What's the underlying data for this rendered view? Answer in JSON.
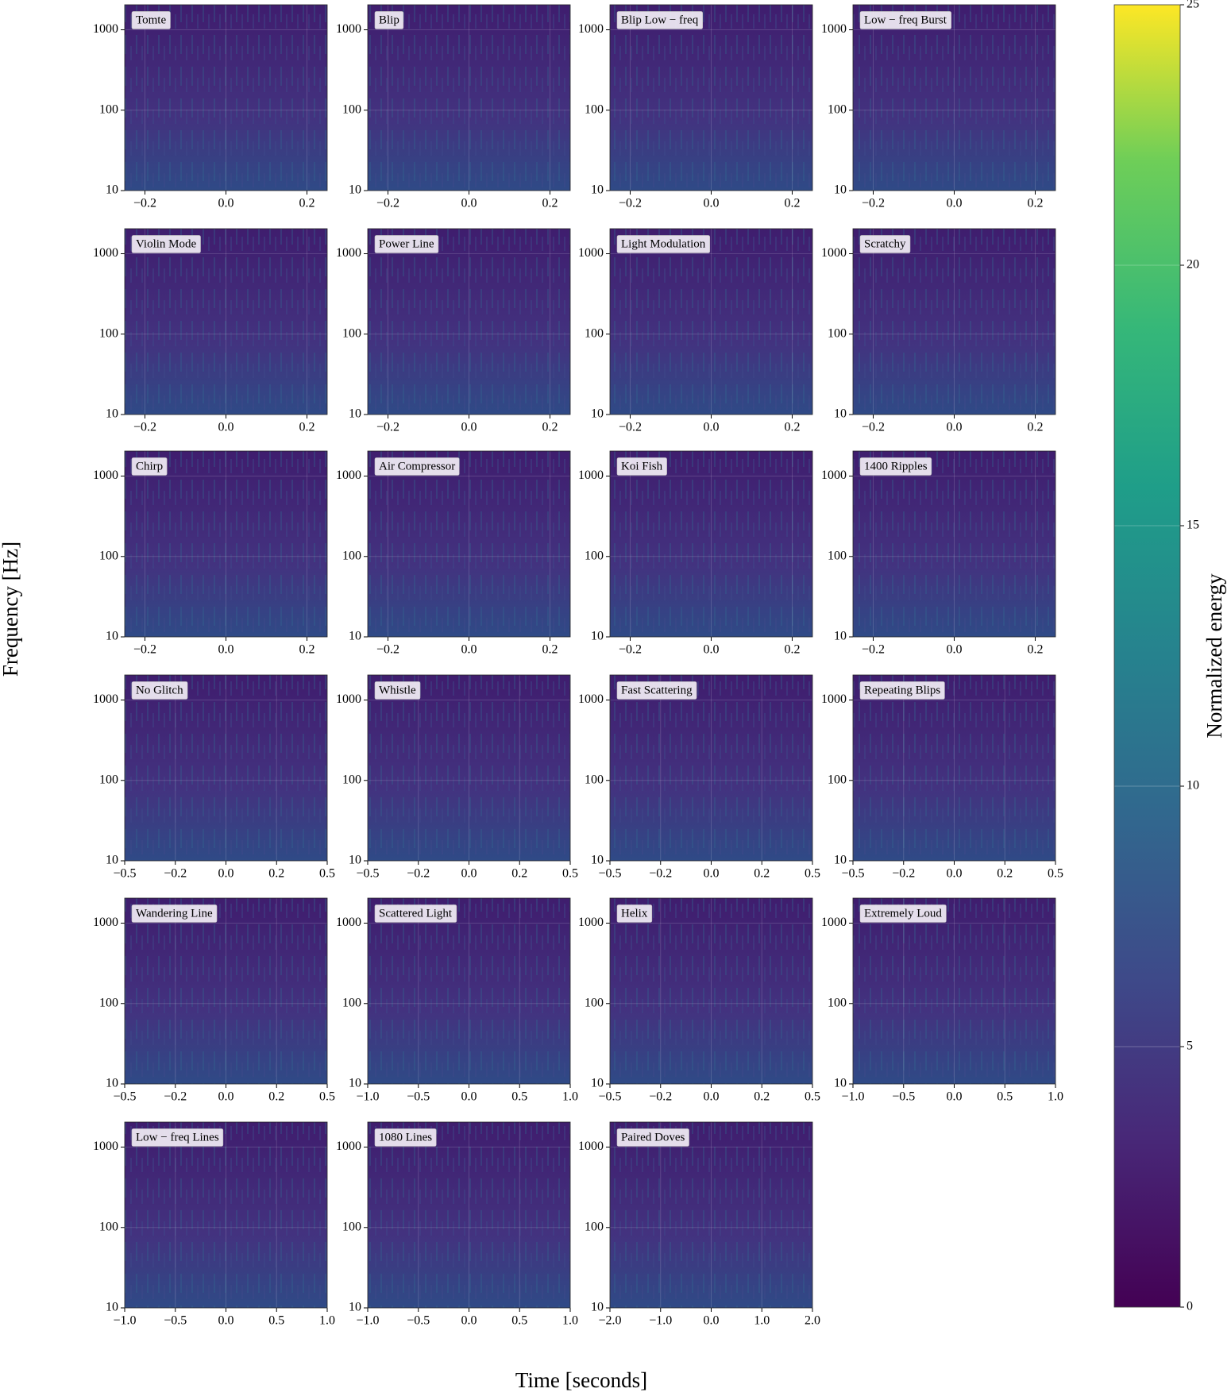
{
  "figure": {
    "xlabel": "Time [seconds]",
    "ylabel": "Frequency [Hz]"
  },
  "chart_data": [
    {
      "type": "spectrogram",
      "title": "Tomte",
      "xlim": [
        -0.25,
        0.25
      ],
      "xticks": [
        {
          "value": -0.2,
          "label": "−0.2"
        },
        {
          "value": 0,
          "label": "0.0"
        },
        {
          "value": 0.2,
          "label": "0.2"
        }
      ],
      "ylim": [
        10,
        2048
      ],
      "yticks": [
        10,
        100,
        1000
      ],
      "log_y": true
    },
    {
      "type": "spectrogram",
      "title": "Blip",
      "xlim": [
        -0.25,
        0.25
      ],
      "xticks": [
        {
          "value": -0.2,
          "label": "−0.2"
        },
        {
          "value": 0,
          "label": "0.0"
        },
        {
          "value": 0.2,
          "label": "0.2"
        }
      ],
      "ylim": [
        10,
        2048
      ],
      "yticks": [
        10,
        100,
        1000
      ],
      "log_y": true
    },
    {
      "type": "spectrogram",
      "title": "Blip Low − freq",
      "xlim": [
        -0.25,
        0.25
      ],
      "xticks": [
        {
          "value": -0.2,
          "label": "−0.2"
        },
        {
          "value": 0,
          "label": "0.0"
        },
        {
          "value": 0.2,
          "label": "0.2"
        }
      ],
      "ylim": [
        10,
        2048
      ],
      "yticks": [
        10,
        100,
        1000
      ],
      "log_y": true
    },
    {
      "type": "spectrogram",
      "title": "Low − freq Burst",
      "xlim": [
        -0.25,
        0.25
      ],
      "xticks": [
        {
          "value": -0.2,
          "label": "−0.2"
        },
        {
          "value": 0,
          "label": "0.0"
        },
        {
          "value": 0.2,
          "label": "0.2"
        }
      ],
      "ylim": [
        10,
        2048
      ],
      "yticks": [
        10,
        100,
        1000
      ],
      "log_y": true
    },
    {
      "type": "spectrogram",
      "title": "Violin Mode",
      "xlim": [
        -0.25,
        0.25
      ],
      "xticks": [
        {
          "value": -0.2,
          "label": "−0.2"
        },
        {
          "value": 0,
          "label": "0.0"
        },
        {
          "value": 0.2,
          "label": "0.2"
        }
      ],
      "ylim": [
        10,
        2048
      ],
      "yticks": [
        10,
        100,
        1000
      ],
      "log_y": true
    },
    {
      "type": "spectrogram",
      "title": "Power Line",
      "xlim": [
        -0.25,
        0.25
      ],
      "xticks": [
        {
          "value": -0.2,
          "label": "−0.2"
        },
        {
          "value": 0,
          "label": "0.0"
        },
        {
          "value": 0.2,
          "label": "0.2"
        }
      ],
      "ylim": [
        10,
        2048
      ],
      "yticks": [
        10,
        100,
        1000
      ],
      "log_y": true
    },
    {
      "type": "spectrogram",
      "title": "Light Modulation",
      "xlim": [
        -0.25,
        0.25
      ],
      "xticks": [
        {
          "value": -0.2,
          "label": "−0.2"
        },
        {
          "value": 0,
          "label": "0.0"
        },
        {
          "value": 0.2,
          "label": "0.2"
        }
      ],
      "ylim": [
        10,
        2048
      ],
      "yticks": [
        10,
        100,
        1000
      ],
      "log_y": true
    },
    {
      "type": "spectrogram",
      "title": "Scratchy",
      "xlim": [
        -0.25,
        0.25
      ],
      "xticks": [
        {
          "value": -0.2,
          "label": "−0.2"
        },
        {
          "value": 0,
          "label": "0.0"
        },
        {
          "value": 0.2,
          "label": "0.2"
        }
      ],
      "ylim": [
        10,
        2048
      ],
      "yticks": [
        10,
        100,
        1000
      ],
      "log_y": true
    },
    {
      "type": "spectrogram",
      "title": "Chirp",
      "xlim": [
        -0.25,
        0.25
      ],
      "xticks": [
        {
          "value": -0.2,
          "label": "−0.2"
        },
        {
          "value": 0,
          "label": "0.0"
        },
        {
          "value": 0.2,
          "label": "0.2"
        }
      ],
      "ylim": [
        10,
        2048
      ],
      "yticks": [
        10,
        100,
        1000
      ],
      "log_y": true
    },
    {
      "type": "spectrogram",
      "title": "Air Compressor",
      "xlim": [
        -0.25,
        0.25
      ],
      "xticks": [
        {
          "value": -0.2,
          "label": "−0.2"
        },
        {
          "value": 0,
          "label": "0.0"
        },
        {
          "value": 0.2,
          "label": "0.2"
        }
      ],
      "ylim": [
        10,
        2048
      ],
      "yticks": [
        10,
        100,
        1000
      ],
      "log_y": true
    },
    {
      "type": "spectrogram",
      "title": "Koi Fish",
      "xlim": [
        -0.25,
        0.25
      ],
      "xticks": [
        {
          "value": -0.2,
          "label": "−0.2"
        },
        {
          "value": 0,
          "label": "0.0"
        },
        {
          "value": 0.2,
          "label": "0.2"
        }
      ],
      "ylim": [
        10,
        2048
      ],
      "yticks": [
        10,
        100,
        1000
      ],
      "log_y": true
    },
    {
      "type": "spectrogram",
      "title": "1400 Ripples",
      "xlim": [
        -0.25,
        0.25
      ],
      "xticks": [
        {
          "value": -0.2,
          "label": "−0.2"
        },
        {
          "value": 0,
          "label": "0.0"
        },
        {
          "value": 0.2,
          "label": "0.2"
        }
      ],
      "ylim": [
        10,
        2048
      ],
      "yticks": [
        10,
        100,
        1000
      ],
      "log_y": true
    },
    {
      "type": "spectrogram",
      "title": "No Glitch",
      "xlim": [
        -0.5,
        0.5
      ],
      "xticks": [
        {
          "value": -0.5,
          "label": "−0.5"
        },
        {
          "value": -0.25,
          "label": "−0.2"
        },
        {
          "value": 0,
          "label": "0.0"
        },
        {
          "value": 0.25,
          "label": "0.2"
        },
        {
          "value": 0.5,
          "label": "0.5"
        }
      ],
      "ylim": [
        10,
        2048
      ],
      "yticks": [
        10,
        100,
        1000
      ],
      "log_y": true
    },
    {
      "type": "spectrogram",
      "title": "Whistle",
      "xlim": [
        -0.5,
        0.5
      ],
      "xticks": [
        {
          "value": -0.5,
          "label": "−0.5"
        },
        {
          "value": -0.25,
          "label": "−0.2"
        },
        {
          "value": 0,
          "label": "0.0"
        },
        {
          "value": 0.25,
          "label": "0.2"
        },
        {
          "value": 0.5,
          "label": "0.5"
        }
      ],
      "ylim": [
        10,
        2048
      ],
      "yticks": [
        10,
        100,
        1000
      ],
      "log_y": true
    },
    {
      "type": "spectrogram",
      "title": "Fast Scattering",
      "xlim": [
        -0.5,
        0.5
      ],
      "xticks": [
        {
          "value": -0.5,
          "label": "−0.5"
        },
        {
          "value": -0.25,
          "label": "−0.2"
        },
        {
          "value": 0,
          "label": "0.0"
        },
        {
          "value": 0.25,
          "label": "0.2"
        },
        {
          "value": 0.5,
          "label": "0.5"
        }
      ],
      "ylim": [
        10,
        2048
      ],
      "yticks": [
        10,
        100,
        1000
      ],
      "log_y": true
    },
    {
      "type": "spectrogram",
      "title": "Repeating Blips",
      "xlim": [
        -0.5,
        0.5
      ],
      "xticks": [
        {
          "value": -0.5,
          "label": "−0.5"
        },
        {
          "value": -0.25,
          "label": "−0.2"
        },
        {
          "value": 0,
          "label": "0.0"
        },
        {
          "value": 0.25,
          "label": "0.2"
        },
        {
          "value": 0.5,
          "label": "0.5"
        }
      ],
      "ylim": [
        10,
        2048
      ],
      "yticks": [
        10,
        100,
        1000
      ],
      "log_y": true
    },
    {
      "type": "spectrogram",
      "title": "Wandering Line",
      "xlim": [
        -0.5,
        0.5
      ],
      "xticks": [
        {
          "value": -0.5,
          "label": "−0.5"
        },
        {
          "value": -0.25,
          "label": "−0.2"
        },
        {
          "value": 0,
          "label": "0.0"
        },
        {
          "value": 0.25,
          "label": "0.2"
        },
        {
          "value": 0.5,
          "label": "0.5"
        }
      ],
      "ylim": [
        10,
        2048
      ],
      "yticks": [
        10,
        100,
        1000
      ],
      "log_y": true
    },
    {
      "type": "spectrogram",
      "title": "Scattered Light",
      "xlim": [
        -1,
        1
      ],
      "xticks": [
        {
          "value": -1,
          "label": "−1.0"
        },
        {
          "value": -0.5,
          "label": "−0.5"
        },
        {
          "value": 0,
          "label": "0.0"
        },
        {
          "value": 0.5,
          "label": "0.5"
        },
        {
          "value": 1,
          "label": "1.0"
        }
      ],
      "ylim": [
        10,
        2048
      ],
      "yticks": [
        10,
        100,
        1000
      ],
      "log_y": true
    },
    {
      "type": "spectrogram",
      "title": "Helix",
      "xlim": [
        -0.5,
        0.5
      ],
      "xticks": [
        {
          "value": -0.5,
          "label": "−0.5"
        },
        {
          "value": -0.25,
          "label": "−0.2"
        },
        {
          "value": 0,
          "label": "0.0"
        },
        {
          "value": 0.25,
          "label": "0.2"
        },
        {
          "value": 0.5,
          "label": "0.5"
        }
      ],
      "ylim": [
        10,
        2048
      ],
      "yticks": [
        10,
        100,
        1000
      ],
      "log_y": true
    },
    {
      "type": "spectrogram",
      "title": "Extremely Loud",
      "xlim": [
        -1,
        1
      ],
      "xticks": [
        {
          "value": -1,
          "label": "−1.0"
        },
        {
          "value": -0.5,
          "label": "−0.5"
        },
        {
          "value": 0,
          "label": "0.0"
        },
        {
          "value": 0.5,
          "label": "0.5"
        },
        {
          "value": 1,
          "label": "1.0"
        }
      ],
      "ylim": [
        10,
        2048
      ],
      "yticks": [
        10,
        100,
        1000
      ],
      "log_y": true
    },
    {
      "type": "spectrogram",
      "title": "Low − freq Lines",
      "xlim": [
        -1,
        1
      ],
      "xticks": [
        {
          "value": -1,
          "label": "−1.0"
        },
        {
          "value": -0.5,
          "label": "−0.5"
        },
        {
          "value": 0,
          "label": "0.0"
        },
        {
          "value": 0.5,
          "label": "0.5"
        },
        {
          "value": 1,
          "label": "1.0"
        }
      ],
      "ylim": [
        10,
        2048
      ],
      "yticks": [
        10,
        100,
        1000
      ],
      "log_y": true
    },
    {
      "type": "spectrogram",
      "title": "1080 Lines",
      "xlim": [
        -1,
        1
      ],
      "xticks": [
        {
          "value": -1,
          "label": "−1.0"
        },
        {
          "value": -0.5,
          "label": "−0.5"
        },
        {
          "value": 0,
          "label": "0.0"
        },
        {
          "value": 0.5,
          "label": "0.5"
        },
        {
          "value": 1,
          "label": "1.0"
        }
      ],
      "ylim": [
        10,
        2048
      ],
      "yticks": [
        10,
        100,
        1000
      ],
      "log_y": true
    },
    {
      "type": "spectrogram",
      "title": "Paired Doves",
      "xlim": [
        -2,
        2
      ],
      "xticks": [
        {
          "value": -2,
          "label": "−2.0"
        },
        {
          "value": -1,
          "label": "−1.0"
        },
        {
          "value": 0,
          "label": "0.0"
        },
        {
          "value": 1,
          "label": "1.0"
        },
        {
          "value": 2,
          "label": "2.0"
        }
      ],
      "ylim": [
        10,
        2048
      ],
      "yticks": [
        10,
        100,
        1000
      ],
      "log_y": true
    },
    {
      "type": "colorbar",
      "label": "Normalized energy",
      "colormap": "viridis",
      "ylim": [
        0,
        25
      ],
      "yticks": [
        0,
        5,
        10,
        15,
        20,
        25
      ]
    }
  ]
}
